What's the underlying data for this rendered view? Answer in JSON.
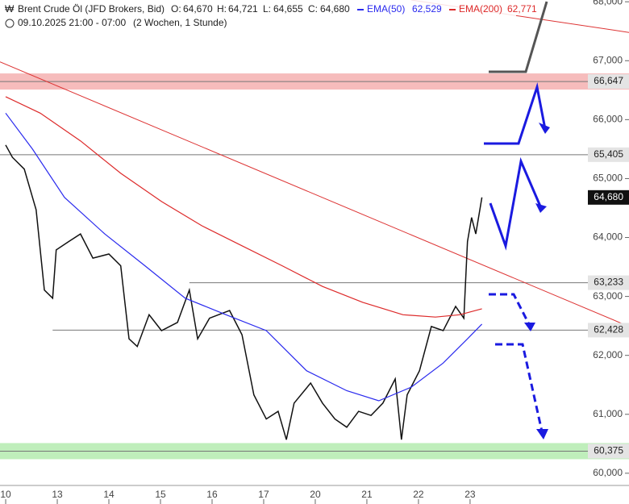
{
  "header": {
    "symbol": "Brent Crude Öl (JFD Brokers, Bid)",
    "open_label": "O:",
    "open": "64,670",
    "high_label": "H:",
    "high": "64,721",
    "low_label": "L:",
    "low": "64,655",
    "close_label": "C:",
    "close": "64,680",
    "ema50_value": "62,529",
    "ema200_value": "62,771",
    "period": "09.10.2025 21:00 - 07:00",
    "range": "(2 Wochen, 1 Stunde)"
  },
  "chart_data": {
    "type": "line",
    "xlim": [
      -0.11,
      12.08
    ],
    "xticks": [
      {
        "value": 0,
        "label": "10"
      },
      {
        "value": 1,
        "label": "13"
      },
      {
        "value": 2,
        "label": "14"
      },
      {
        "value": 3,
        "label": "15"
      },
      {
        "value": 4,
        "label": "16"
      },
      {
        "value": 5,
        "label": "17"
      },
      {
        "value": 6,
        "label": "20"
      },
      {
        "value": 7,
        "label": "21"
      },
      {
        "value": 8,
        "label": "22"
      },
      {
        "value": 9,
        "label": "23"
      }
    ],
    "ylim": [
      59.82,
      68.03
    ],
    "yticks": [
      {
        "value": 60,
        "label": "60,000"
      },
      {
        "value": 61,
        "label": "61,000"
      },
      {
        "value": 62,
        "label": "62,000"
      },
      {
        "value": 63,
        "label": "63,000"
      },
      {
        "value": 64,
        "label": "64,000"
      },
      {
        "value": 65,
        "label": "65,000"
      },
      {
        "value": 66,
        "label": "66,000"
      },
      {
        "value": 67,
        "label": "67,000"
      },
      {
        "value": 68,
        "label": "68,000"
      }
    ],
    "series": [
      {
        "color": "#111111",
        "x": [
          0,
          0.13,
          0.36,
          0.59,
          0.75,
          0.91,
          0.98,
          1.22,
          1.45,
          1.69,
          2.0,
          2.23,
          2.39,
          2.55,
          2.78,
          3.02,
          3.33,
          3.56,
          3.72,
          3.95,
          4.34,
          4.58,
          4.81,
          5.05,
          5.28,
          5.44,
          5.59,
          5.91,
          6.14,
          6.38,
          6.61,
          6.84,
          7.08,
          7.31,
          7.55,
          7.67,
          7.78,
          8.02,
          8.25,
          8.48,
          8.72,
          8.88,
          8.95,
          9.03,
          9.11,
          9.23
        ],
        "values": [
          65.57,
          65.36,
          65.16,
          64.47,
          63.11,
          62.97,
          63.79,
          63.93,
          64.06,
          63.65,
          63.72,
          63.52,
          62.28,
          62.15,
          62.69,
          62.42,
          62.56,
          63.11,
          62.28,
          62.63,
          62.76,
          62.35,
          61.33,
          60.92,
          61.05,
          60.57,
          61.19,
          61.53,
          61.19,
          60.92,
          60.78,
          61.05,
          60.98,
          61.19,
          61.6,
          60.57,
          61.33,
          61.74,
          62.49,
          62.42,
          62.83,
          62.63,
          63.93,
          64.34,
          64.06,
          64.68
        ]
      },
      {
        "name": "EMA(50)",
        "color": "#2a2aee",
        "x": [
          0,
          0.52,
          1.14,
          1.92,
          2.7,
          3.48,
          4.27,
          5.05,
          5.83,
          6.61,
          7.23,
          7.86,
          8.48,
          8.95,
          9.23
        ],
        "values": [
          66.11,
          65.5,
          64.68,
          64.06,
          63.52,
          62.97,
          62.69,
          62.42,
          61.74,
          61.4,
          61.23,
          61.46,
          61.87,
          62.28,
          62.53
        ]
      },
      {
        "name": "EMA(200)",
        "color": "#dd2a2a",
        "x": [
          0,
          0.67,
          1.45,
          2.23,
          3.02,
          3.8,
          4.58,
          5.36,
          6.14,
          6.92,
          7.7,
          8.33,
          8.8,
          9.23
        ],
        "values": [
          66.39,
          66.11,
          65.64,
          65.09,
          64.61,
          64.2,
          63.86,
          63.52,
          63.17,
          62.9,
          62.69,
          62.65,
          62.69,
          62.79
        ]
      }
    ],
    "trendlines": [
      {
        "color": "#dd3333",
        "x": [
          -0.11,
          12.08
        ],
        "values": [
          66.98,
          62.49
        ]
      },
      {
        "color": "#dd3333",
        "x": [
          7.86,
          12.08
        ],
        "values": [
          68.03,
          67.48
        ]
      }
    ],
    "levels": [
      {
        "value": 66.647,
        "label": "66,647",
        "x_from": -0.11,
        "band": "#f6bcbc"
      },
      {
        "value": 65.405,
        "label": "65,405",
        "x_from": -0.11
      },
      {
        "value": 63.233,
        "label": "63,233",
        "x_from": 3.56
      },
      {
        "value": 62.428,
        "label": "62,428",
        "x_from": 0.91
      },
      {
        "value": 60.375,
        "label": "60,375",
        "x_from": -0.11,
        "band": "#bfeebb"
      }
    ],
    "last": {
      "value": 64.68,
      "label": "64,680"
    }
  }
}
